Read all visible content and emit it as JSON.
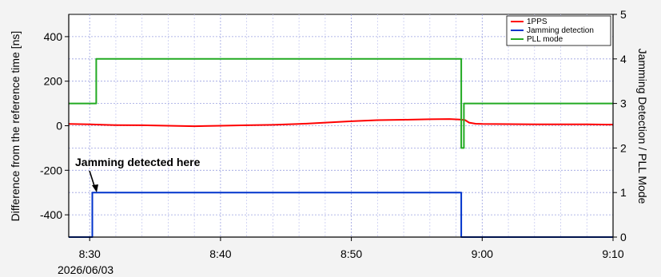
{
  "chart_data": {
    "type": "line",
    "x_ticks": [
      "8:30",
      "8:40",
      "8:50",
      "9:00",
      "9:10"
    ],
    "x_date": "2026/06/03",
    "x_range_minutes": [
      28.4,
      70.0
    ],
    "ylabel_left": "Difference from the reference time [ns]",
    "ylim_left": [
      -500,
      500
    ],
    "yticks_left": [
      -400,
      -200,
      0,
      200,
      400
    ],
    "ylabel_right": "Jamming Detection / PLL Mode",
    "ylim_right": [
      0,
      5
    ],
    "yticks_right": [
      0,
      1,
      2,
      3,
      4,
      5
    ],
    "grid": true,
    "legend_position": "top-right",
    "series": [
      {
        "name": "1PPS",
        "color": "#ff0000",
        "axis": "left",
        "points": [
          [
            28.4,
            8
          ],
          [
            30,
            6
          ],
          [
            32,
            3
          ],
          [
            34,
            2
          ],
          [
            36,
            0
          ],
          [
            38,
            -2
          ],
          [
            40,
            0
          ],
          [
            42,
            2
          ],
          [
            44,
            4
          ],
          [
            46,
            8
          ],
          [
            48,
            14
          ],
          [
            50,
            20
          ],
          [
            52,
            25
          ],
          [
            54,
            27
          ],
          [
            56,
            29
          ],
          [
            57.5,
            30
          ],
          [
            58.3,
            28
          ],
          [
            58.7,
            25
          ],
          [
            59.0,
            14
          ],
          [
            59.5,
            9
          ],
          [
            60,
            8
          ],
          [
            62,
            7
          ],
          [
            64,
            6
          ],
          [
            66,
            6
          ],
          [
            68,
            6
          ],
          [
            70,
            5
          ]
        ]
      },
      {
        "name": "Jamming detection",
        "color": "#0033cc",
        "axis": "right",
        "points": [
          [
            28.4,
            0
          ],
          [
            30.2,
            0
          ],
          [
            30.2,
            1
          ],
          [
            58.4,
            1
          ],
          [
            58.4,
            0
          ],
          [
            70,
            0
          ]
        ]
      },
      {
        "name": "PLL mode",
        "color": "#22aa22",
        "axis": "right",
        "points": [
          [
            28.4,
            3
          ],
          [
            30.5,
            3
          ],
          [
            30.5,
            4
          ],
          [
            58.4,
            4
          ],
          [
            58.4,
            2
          ],
          [
            58.6,
            2
          ],
          [
            58.6,
            3
          ],
          [
            70,
            3
          ]
        ]
      }
    ],
    "annotation": {
      "text": "Jamming detected here",
      "target": [
        30.2,
        1
      ]
    }
  }
}
